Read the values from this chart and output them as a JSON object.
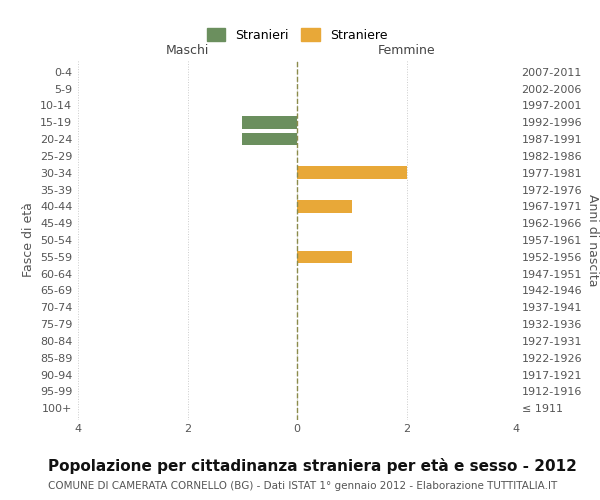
{
  "age_groups": [
    "100+",
    "95-99",
    "90-94",
    "85-89",
    "80-84",
    "75-79",
    "70-74",
    "65-69",
    "60-64",
    "55-59",
    "50-54",
    "45-49",
    "40-44",
    "35-39",
    "30-34",
    "25-29",
    "20-24",
    "15-19",
    "10-14",
    "5-9",
    "0-4"
  ],
  "birth_years": [
    "≤ 1911",
    "1912-1916",
    "1917-1921",
    "1922-1926",
    "1927-1931",
    "1932-1936",
    "1937-1941",
    "1942-1946",
    "1947-1951",
    "1952-1956",
    "1957-1961",
    "1962-1966",
    "1967-1971",
    "1972-1976",
    "1977-1981",
    "1982-1986",
    "1987-1991",
    "1992-1996",
    "1997-2001",
    "2002-2006",
    "2007-2011"
  ],
  "males": [
    0,
    0,
    0,
    0,
    0,
    0,
    0,
    0,
    0,
    0,
    0,
    0,
    0,
    0,
    0,
    0,
    1,
    1,
    0,
    0,
    0
  ],
  "females": [
    0,
    0,
    0,
    0,
    0,
    0,
    0,
    0,
    0,
    1,
    0,
    0,
    1,
    0,
    2,
    0,
    0,
    0,
    0,
    0,
    0
  ],
  "male_color": "#6b8f5e",
  "female_color": "#e8a838",
  "male_label": "Stranieri",
  "female_label": "Straniere",
  "xlim": 4,
  "title": "Popolazione per cittadinanza straniera per età e sesso - 2012",
  "subtitle": "COMUNE DI CAMERATA CORNELLO (BG) - Dati ISTAT 1° gennaio 2012 - Elaborazione TUTTITALIA.IT",
  "ylabel_left": "Fasce di età",
  "ylabel_right": "Anni di nascita",
  "xlabel_left": "Maschi",
  "xlabel_right": "Femmine",
  "grid_color": "#cccccc",
  "bg_color": "#ffffff",
  "center_line_color": "#8b8b4b",
  "tick_color": "#555555",
  "title_fontsize": 11,
  "subtitle_fontsize": 7.5,
  "label_fontsize": 9,
  "tick_fontsize": 8,
  "legend_fontsize": 9,
  "bar_height": 0.75
}
